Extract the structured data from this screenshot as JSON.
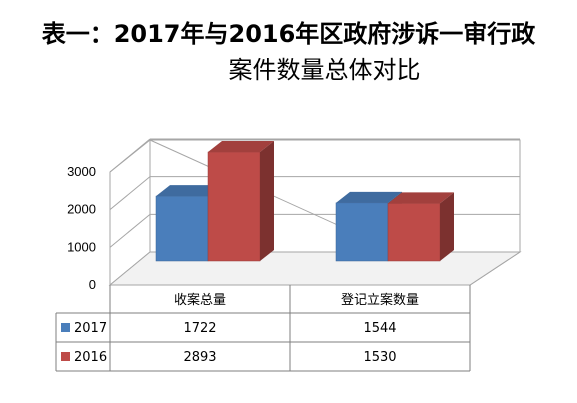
{
  "header": {
    "title_line1": "表一：2017年与2016年区政府涉诉一审行政",
    "title_line2": "案件数量总体对比"
  },
  "chart_data": {
    "type": "bar",
    "categories": [
      "收案总量",
      "登记立案数量"
    ],
    "series": [
      {
        "name": "2017",
        "values": [
          1722,
          1544
        ],
        "color": "#4a7ebb"
      },
      {
        "name": "2016",
        "values": [
          2893,
          1530
        ],
        "color": "#be4b48"
      }
    ],
    "ylim": [
      0,
      3000
    ],
    "yticks": [
      "0",
      "1000",
      "2000",
      "3000"
    ],
    "grid": true,
    "three_d": true,
    "data_table": true
  }
}
